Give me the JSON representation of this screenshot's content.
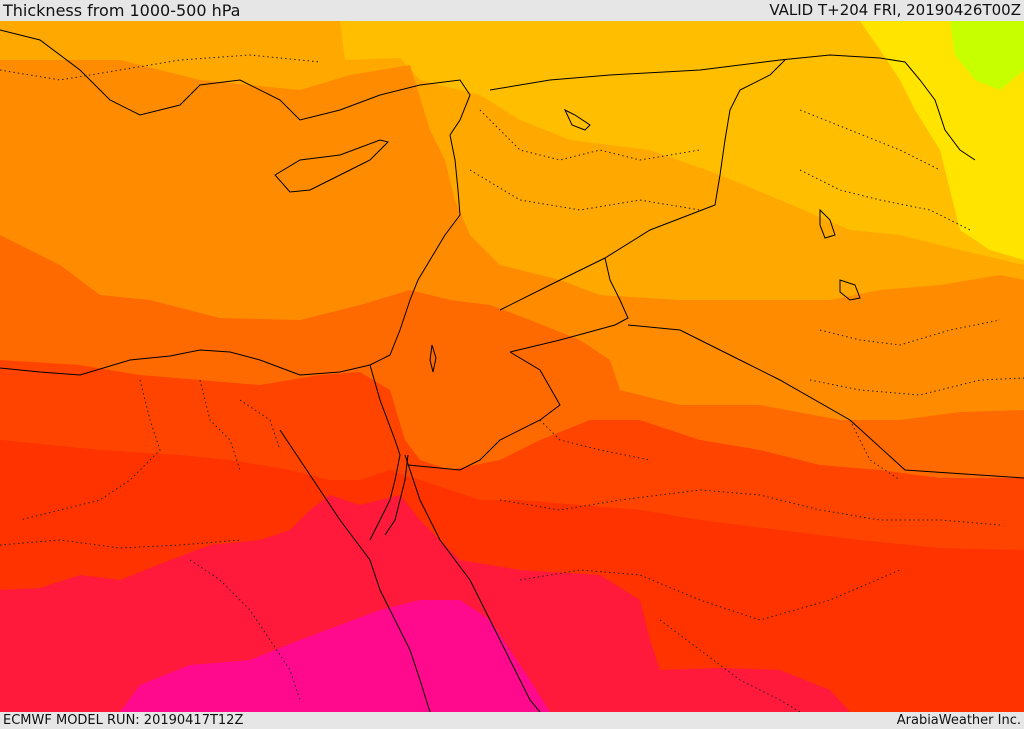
{
  "header": {
    "title": "Thickness from 1000-500 hPa",
    "valid": "VALID T+204 FRI, 20190426T00Z"
  },
  "footer": {
    "model_run": "ECMWF MODEL RUN: 20190417T12Z",
    "credit": "ArabiaWeather Inc."
  },
  "colors": {
    "yellow_green": "#c8ff00",
    "yellow": "#ffff00",
    "light_orange": "#ffc200",
    "orange": "#ffaa00",
    "dark_orange": "#ff8c00",
    "red_orange": "#ff6a00",
    "orange_red": "#ff3c00",
    "crimson": "#ff1e3c",
    "magenta": "#ff0a8c",
    "boundaries": "#000000"
  }
}
